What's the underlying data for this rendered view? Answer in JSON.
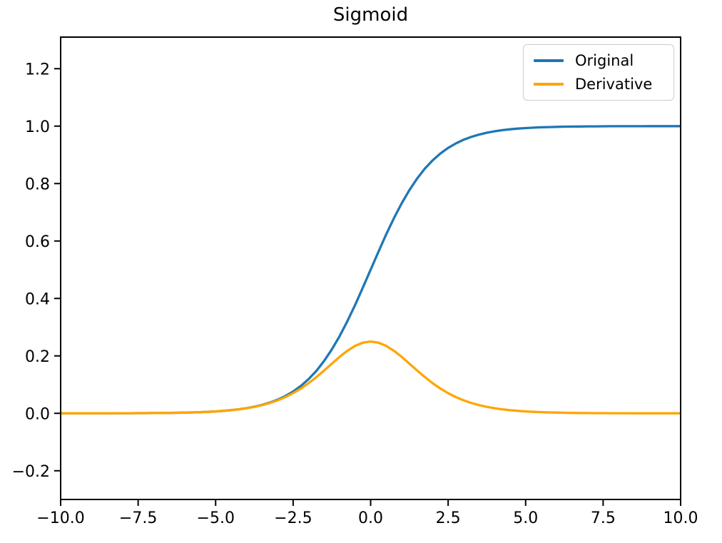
{
  "figure": {
    "background": "#ffffff",
    "axis_color": "#000000",
    "text_color": "#000000",
    "legend_border_color": "#cccccc"
  },
  "chart_data": {
    "type": "line",
    "title": "Sigmoid",
    "xlabel": "",
    "ylabel": "",
    "xlim": [
      -10,
      10
    ],
    "ylim": [
      -0.3,
      1.31
    ],
    "grid": false,
    "legend_position": "upper right",
    "xticks": [
      {
        "value": -10.0,
        "label": "−10.0"
      },
      {
        "value": -7.5,
        "label": "−7.5"
      },
      {
        "value": -5.0,
        "label": "−5.0"
      },
      {
        "value": -2.5,
        "label": "−2.5"
      },
      {
        "value": 0.0,
        "label": "0.0"
      },
      {
        "value": 2.5,
        "label": "2.5"
      },
      {
        "value": 5.0,
        "label": "5.0"
      },
      {
        "value": 7.5,
        "label": "7.5"
      },
      {
        "value": 10.0,
        "label": "10.0"
      }
    ],
    "yticks": [
      {
        "value": -0.2,
        "label": "−0.2"
      },
      {
        "value": 0.0,
        "label": "0.0"
      },
      {
        "value": 0.2,
        "label": "0.2"
      },
      {
        "value": 0.4,
        "label": "0.4"
      },
      {
        "value": 0.6,
        "label": "0.6"
      },
      {
        "value": 0.8,
        "label": "0.8"
      },
      {
        "value": 1.0,
        "label": "1.0"
      },
      {
        "value": 1.2,
        "label": "1.2"
      }
    ],
    "x": [
      -10,
      -9.75,
      -9.5,
      -9.25,
      -9,
      -8.75,
      -8.5,
      -8.25,
      -8,
      -7.75,
      -7.5,
      -7.25,
      -7,
      -6.75,
      -6.5,
      -6.25,
      -6,
      -5.75,
      -5.5,
      -5.25,
      -5,
      -4.75,
      -4.5,
      -4.25,
      -4,
      -3.75,
      -3.5,
      -3.25,
      -3,
      -2.75,
      -2.5,
      -2.25,
      -2,
      -1.75,
      -1.5,
      -1.25,
      -1,
      -0.75,
      -0.5,
      -0.25,
      0,
      0.25,
      0.5,
      0.75,
      1,
      1.25,
      1.5,
      1.75,
      2,
      2.25,
      2.5,
      2.75,
      3,
      3.25,
      3.5,
      3.75,
      4,
      4.25,
      4.5,
      4.75,
      5,
      5.25,
      5.5,
      5.75,
      6,
      6.25,
      6.5,
      6.75,
      7,
      7.25,
      7.5,
      7.75,
      8,
      8.25,
      8.5,
      8.75,
      9,
      9.25,
      9.5,
      9.75,
      10
    ],
    "series": [
      {
        "name": "Original",
        "color": "#1f77b4",
        "values": [
          0.0,
          0.0001,
          0.0001,
          0.0001,
          0.0001,
          0.0002,
          0.0002,
          0.0003,
          0.0003,
          0.0004,
          0.0006,
          0.0007,
          0.0009,
          0.0012,
          0.0015,
          0.0019,
          0.0025,
          0.0032,
          0.0041,
          0.0052,
          0.0067,
          0.0086,
          0.011,
          0.0141,
          0.018,
          0.023,
          0.0293,
          0.0373,
          0.0474,
          0.0601,
          0.0759,
          0.0953,
          0.1192,
          0.148,
          0.1824,
          0.2227,
          0.2689,
          0.3208,
          0.3775,
          0.4378,
          0.5,
          0.5622,
          0.6225,
          0.6792,
          0.7311,
          0.7773,
          0.8176,
          0.852,
          0.8808,
          0.9047,
          0.9241,
          0.9399,
          0.9526,
          0.9627,
          0.9707,
          0.977,
          0.982,
          0.9859,
          0.989,
          0.9914,
          0.9933,
          0.9948,
          0.9959,
          0.9968,
          0.9975,
          0.9981,
          0.9985,
          0.9988,
          0.9991,
          0.9993,
          0.9994,
          0.9996,
          0.9997,
          0.9997,
          0.9998,
          0.9998,
          0.9999,
          0.9999,
          0.9999,
          0.9999,
          1.0
        ]
      },
      {
        "name": "Derivative",
        "color": "#ffa500",
        "values": [
          0.0,
          0.0001,
          0.0001,
          0.0001,
          0.0001,
          0.0002,
          0.0002,
          0.0003,
          0.0003,
          0.0004,
          0.0006,
          0.0007,
          0.0009,
          0.0012,
          0.0015,
          0.0019,
          0.0025,
          0.0032,
          0.0041,
          0.0052,
          0.0066,
          0.0085,
          0.0109,
          0.0139,
          0.0177,
          0.0225,
          0.0285,
          0.0359,
          0.0452,
          0.0565,
          0.0701,
          0.0862,
          0.105,
          0.1261,
          0.1491,
          0.1731,
          0.1966,
          0.2179,
          0.235,
          0.2461,
          0.25,
          0.2461,
          0.235,
          0.2179,
          0.1966,
          0.1731,
          0.1491,
          0.1261,
          0.105,
          0.0862,
          0.0701,
          0.0565,
          0.0452,
          0.0359,
          0.0285,
          0.0225,
          0.0177,
          0.0139,
          0.0109,
          0.0085,
          0.0066,
          0.0052,
          0.0041,
          0.0032,
          0.0025,
          0.0019,
          0.0015,
          0.0012,
          0.0009,
          0.0007,
          0.0006,
          0.0004,
          0.0003,
          0.0003,
          0.0002,
          0.0002,
          0.0001,
          0.0001,
          0.0001,
          0.0001,
          0.0
        ]
      }
    ]
  }
}
